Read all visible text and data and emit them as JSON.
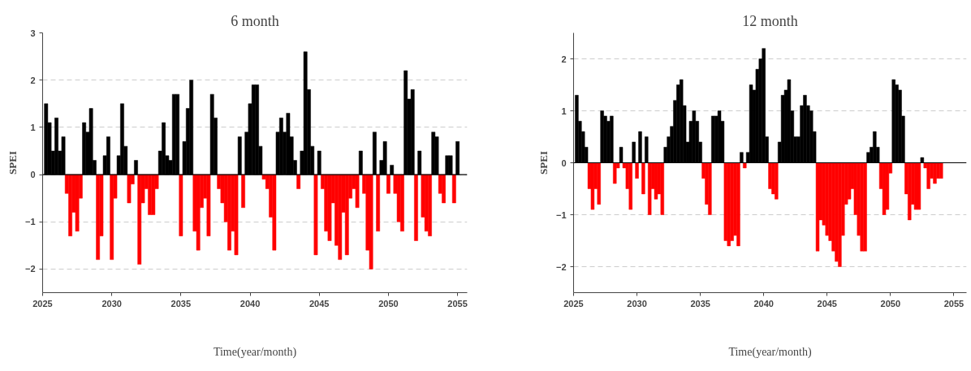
{
  "chart_data": [
    {
      "type": "bar",
      "title": "6 month",
      "xlabel": "Time(year/month)",
      "ylabel": "SPEI",
      "xlim": [
        2025,
        2055.7
      ],
      "ylim": [
        -2.5,
        3
      ],
      "xticks": [
        2025,
        2030,
        2035,
        2040,
        2045,
        2050,
        2055
      ],
      "yticks": [
        -2,
        -1,
        0,
        1,
        2,
        3
      ],
      "grid": "y",
      "ref_lines": [
        {
          "axis": "y",
          "value": 0,
          "color": "#000000"
        }
      ],
      "x": [
        2025.25,
        2025.5,
        2025.75,
        2026,
        2026.25,
        2026.5,
        2026.75,
        2027,
        2027.25,
        2027.5,
        2027.75,
        2028,
        2028.25,
        2028.5,
        2028.75,
        2029,
        2029.25,
        2029.5,
        2029.75,
        2030,
        2030.25,
        2030.5,
        2030.75,
        2031,
        2031.25,
        2031.5,
        2031.75,
        2032,
        2032.25,
        2032.5,
        2032.75,
        2033,
        2033.25,
        2033.5,
        2033.75,
        2034,
        2034.25,
        2034.5,
        2034.75,
        2035,
        2035.25,
        2035.5,
        2035.75,
        2036,
        2036.25,
        2036.5,
        2036.75,
        2037,
        2037.25,
        2037.5,
        2037.75,
        2038,
        2038.25,
        2038.5,
        2038.75,
        2039,
        2039.25,
        2039.5,
        2039.75,
        2040,
        2040.25,
        2040.5,
        2040.75,
        2041,
        2041.25,
        2041.5,
        2041.75,
        2042,
        2042.25,
        2042.5,
        2042.75,
        2043,
        2043.25,
        2043.5,
        2043.75,
        2044,
        2044.25,
        2044.5,
        2044.75,
        2045,
        2045.25,
        2045.5,
        2045.75,
        2046,
        2046.25,
        2046.5,
        2046.75,
        2047,
        2047.25,
        2047.5,
        2047.75,
        2048,
        2048.25,
        2048.5,
        2048.75,
        2049,
        2049.25,
        2049.5,
        2049.75,
        2050,
        2050.25,
        2050.5,
        2050.75,
        2051,
        2051.25,
        2051.5,
        2051.75,
        2052,
        2052.25,
        2052.5,
        2052.75,
        2053,
        2053.25,
        2053.5,
        2053.75,
        2054,
        2054.25,
        2054.5,
        2054.75,
        2055
      ],
      "values": [
        1.5,
        1.1,
        0.5,
        1.2,
        0.5,
        0.8,
        -0.4,
        -1.3,
        -0.8,
        -1.2,
        -0.5,
        1.1,
        0.9,
        1.4,
        0.3,
        -1.8,
        -1.3,
        0.4,
        0.8,
        -1.8,
        -0.5,
        0.4,
        1.5,
        0.6,
        -0.6,
        -0.2,
        0.3,
        -1.9,
        -0.6,
        -0.3,
        -0.85,
        -0.85,
        -0.3,
        0.5,
        1.1,
        0.4,
        0.3,
        1.7,
        1.7,
        -1.3,
        0.7,
        1.4,
        2.0,
        -1.2,
        -1.6,
        -0.7,
        -0.5,
        -1.3,
        1.7,
        1.2,
        -0.3,
        -0.6,
        -1.0,
        -1.6,
        -1.2,
        -1.7,
        0.8,
        -0.7,
        0.9,
        1.5,
        1.9,
        1.9,
        0.6,
        -0.1,
        -0.3,
        -0.9,
        -1.6,
        0.9,
        1.2,
        0.9,
        1.3,
        0.8,
        0.3,
        -0.3,
        0.5,
        2.6,
        1.8,
        0.6,
        -1.7,
        0.5,
        -0.3,
        -1.2,
        -1.4,
        -0.6,
        -1.5,
        -1.8,
        -0.8,
        -1.7,
        -0.5,
        -0.3,
        -0.7,
        0.5,
        -0.4,
        -1.6,
        -2.0,
        0.9,
        -1.2,
        0.3,
        0.7,
        -0.4,
        0.2,
        -0.4,
        -1.0,
        -1.2,
        2.2,
        1.6,
        1.8,
        -1.4,
        0.5,
        -0.9,
        -1.2,
        -1.3,
        0.9,
        0.8,
        -0.4,
        -0.6,
        0.4,
        0.4,
        -0.6,
        0.7
      ],
      "colors": [
        "#000000",
        "#000000",
        "#000000",
        "#000000",
        "#000000",
        "#000000",
        "#ff0000",
        "#ff0000",
        "#ff0000",
        "#ff0000",
        "#ff0000",
        "#000000",
        "#000000",
        "#000000",
        "#000000",
        "#ff0000",
        "#ff0000",
        "#000000",
        "#000000",
        "#ff0000",
        "#ff0000",
        "#000000",
        "#000000",
        "#000000",
        "#ff0000",
        "#ff0000",
        "#000000",
        "#ff0000",
        "#ff0000",
        "#ff0000",
        "#ff0000",
        "#ff0000",
        "#ff0000",
        "#000000",
        "#000000",
        "#000000",
        "#000000",
        "#000000",
        "#000000",
        "#ff0000",
        "#000000",
        "#000000",
        "#000000",
        "#ff0000",
        "#ff0000",
        "#ff0000",
        "#ff0000",
        "#ff0000",
        "#000000",
        "#000000",
        "#ff0000",
        "#ff0000",
        "#ff0000",
        "#ff0000",
        "#ff0000",
        "#ff0000",
        "#000000",
        "#ff0000",
        "#000000",
        "#000000",
        "#000000",
        "#000000",
        "#000000",
        "#ff0000",
        "#ff0000",
        "#ff0000",
        "#ff0000",
        "#000000",
        "#000000",
        "#000000",
        "#000000",
        "#000000",
        "#000000",
        "#ff0000",
        "#000000",
        "#000000",
        "#000000",
        "#000000",
        "#ff0000",
        "#000000",
        "#ff0000",
        "#ff0000",
        "#ff0000",
        "#ff0000",
        "#ff0000",
        "#ff0000",
        "#ff0000",
        "#ff0000",
        "#ff0000",
        "#ff0000",
        "#ff0000",
        "#000000",
        "#ff0000",
        "#ff0000",
        "#ff0000",
        "#000000",
        "#ff0000",
        "#000000",
        "#000000",
        "#ff0000",
        "#000000",
        "#ff0000",
        "#ff0000",
        "#ff0000",
        "#000000",
        "#000000",
        "#000000",
        "#ff0000",
        "#000000",
        "#ff0000",
        "#ff0000",
        "#ff0000",
        "#000000",
        "#000000",
        "#ff0000",
        "#ff0000",
        "#000000",
        "#000000",
        "#ff0000",
        "#000000"
      ]
    },
    {
      "type": "bar",
      "title": "12 month",
      "xlabel": "Time(year/month)",
      "ylabel": "SPEI",
      "xlim": [
        2025,
        2056
      ],
      "ylim": [
        -2.5,
        2.5
      ],
      "xticks": [
        2025,
        2030,
        2035,
        2040,
        2045,
        2050,
        2055
      ],
      "yticks": [
        -2,
        -1,
        0,
        1,
        2
      ],
      "grid": "y",
      "ref_lines": [
        {
          "axis": "y",
          "value": 0,
          "color": "#000000"
        }
      ],
      "x": [
        2025.25,
        2025.5,
        2025.75,
        2026,
        2026.25,
        2026.5,
        2026.75,
        2027,
        2027.25,
        2027.5,
        2027.75,
        2028,
        2028.25,
        2028.5,
        2028.75,
        2029,
        2029.25,
        2029.5,
        2029.75,
        2030,
        2030.25,
        2030.5,
        2030.75,
        2031,
        2031.25,
        2031.5,
        2031.75,
        2032,
        2032.25,
        2032.5,
        2032.75,
        2033,
        2033.25,
        2033.5,
        2033.75,
        2034,
        2034.25,
        2034.5,
        2034.75,
        2035,
        2035.25,
        2035.5,
        2035.75,
        2036,
        2036.25,
        2036.5,
        2036.75,
        2037,
        2037.25,
        2037.5,
        2037.75,
        2038,
        2038.25,
        2038.5,
        2038.75,
        2039,
        2039.25,
        2039.5,
        2039.75,
        2040,
        2040.25,
        2040.5,
        2040.75,
        2041,
        2041.25,
        2041.5,
        2041.75,
        2042,
        2042.25,
        2042.5,
        2042.75,
        2043,
        2043.25,
        2043.5,
        2043.75,
        2044,
        2044.25,
        2044.5,
        2044.75,
        2045,
        2045.25,
        2045.5,
        2045.75,
        2046,
        2046.25,
        2046.5,
        2046.75,
        2047,
        2047.25,
        2047.5,
        2047.75,
        2048,
        2048.25,
        2048.5,
        2048.75,
        2049,
        2049.25,
        2049.5,
        2049.75,
        2050,
        2050.25,
        2050.5,
        2050.75,
        2051,
        2051.25,
        2051.5,
        2051.75,
        2052,
        2052.25,
        2052.5,
        2052.75,
        2053,
        2053.25,
        2053.5,
        2053.75,
        2054
      ],
      "values": [
        1.3,
        0.8,
        0.6,
        0.3,
        -0.5,
        -0.9,
        -0.5,
        -0.8,
        1.0,
        0.9,
        0.8,
        0.9,
        -0.4,
        -0.1,
        0.3,
        -0.1,
        -0.5,
        -0.9,
        0.4,
        -0.3,
        0.6,
        -0.6,
        0.5,
        -1.0,
        -0.5,
        -0.7,
        -0.6,
        -1.0,
        0.3,
        0.5,
        0.7,
        1.2,
        1.5,
        1.6,
        1.1,
        0.4,
        0.8,
        1.0,
        0.8,
        0.4,
        -0.3,
        -0.8,
        -1.0,
        0.9,
        0.9,
        1.0,
        0.8,
        -1.5,
        -1.6,
        -1.5,
        -1.4,
        -1.6,
        0.2,
        -0.1,
        0.2,
        1.5,
        1.4,
        1.8,
        2.0,
        2.2,
        0.5,
        -0.5,
        -0.6,
        -0.7,
        0.4,
        1.3,
        1.4,
        1.6,
        1.0,
        0.5,
        0.5,
        1.1,
        1.3,
        1.1,
        1.0,
        0.6,
        -1.7,
        -1.1,
        -1.2,
        -1.4,
        -1.5,
        -1.7,
        -1.9,
        -2.0,
        -1.4,
        -0.8,
        -0.7,
        -0.5,
        -1.0,
        -1.4,
        -1.7,
        -1.7,
        0.2,
        0.3,
        0.6,
        0.3,
        -0.5,
        -1.0,
        -0.9,
        -0.2,
        1.6,
        1.5,
        1.4,
        0.9,
        -0.6,
        -1.1,
        -0.8,
        -0.9,
        -0.9,
        0.1,
        -0.1,
        -0.5,
        -0.3,
        -0.4,
        -0.3,
        -0.3
      ],
      "colors": [
        "#000000",
        "#000000",
        "#000000",
        "#000000",
        "#ff0000",
        "#ff0000",
        "#ff0000",
        "#ff0000",
        "#000000",
        "#000000",
        "#000000",
        "#000000",
        "#ff0000",
        "#ff0000",
        "#000000",
        "#ff0000",
        "#ff0000",
        "#ff0000",
        "#000000",
        "#ff0000",
        "#000000",
        "#ff0000",
        "#000000",
        "#ff0000",
        "#ff0000",
        "#ff0000",
        "#ff0000",
        "#ff0000",
        "#000000",
        "#000000",
        "#000000",
        "#000000",
        "#000000",
        "#000000",
        "#000000",
        "#000000",
        "#000000",
        "#000000",
        "#000000",
        "#000000",
        "#ff0000",
        "#ff0000",
        "#ff0000",
        "#000000",
        "#000000",
        "#000000",
        "#000000",
        "#ff0000",
        "#ff0000",
        "#ff0000",
        "#ff0000",
        "#ff0000",
        "#000000",
        "#ff0000",
        "#000000",
        "#000000",
        "#000000",
        "#000000",
        "#000000",
        "#000000",
        "#000000",
        "#ff0000",
        "#ff0000",
        "#ff0000",
        "#000000",
        "#000000",
        "#000000",
        "#000000",
        "#000000",
        "#000000",
        "#000000",
        "#000000",
        "#000000",
        "#000000",
        "#000000",
        "#000000",
        "#ff0000",
        "#ff0000",
        "#ff0000",
        "#ff0000",
        "#ff0000",
        "#ff0000",
        "#ff0000",
        "#ff0000",
        "#ff0000",
        "#ff0000",
        "#ff0000",
        "#ff0000",
        "#ff0000",
        "#ff0000",
        "#ff0000",
        "#ff0000",
        "#000000",
        "#000000",
        "#000000",
        "#000000",
        "#ff0000",
        "#ff0000",
        "#ff0000",
        "#ff0000",
        "#000000",
        "#000000",
        "#000000",
        "#000000",
        "#ff0000",
        "#ff0000",
        "#ff0000",
        "#ff0000",
        "#ff0000",
        "#000000",
        "#ff0000",
        "#ff0000",
        "#ff0000",
        "#ff0000",
        "#ff0000",
        "#ff0000"
      ]
    }
  ]
}
